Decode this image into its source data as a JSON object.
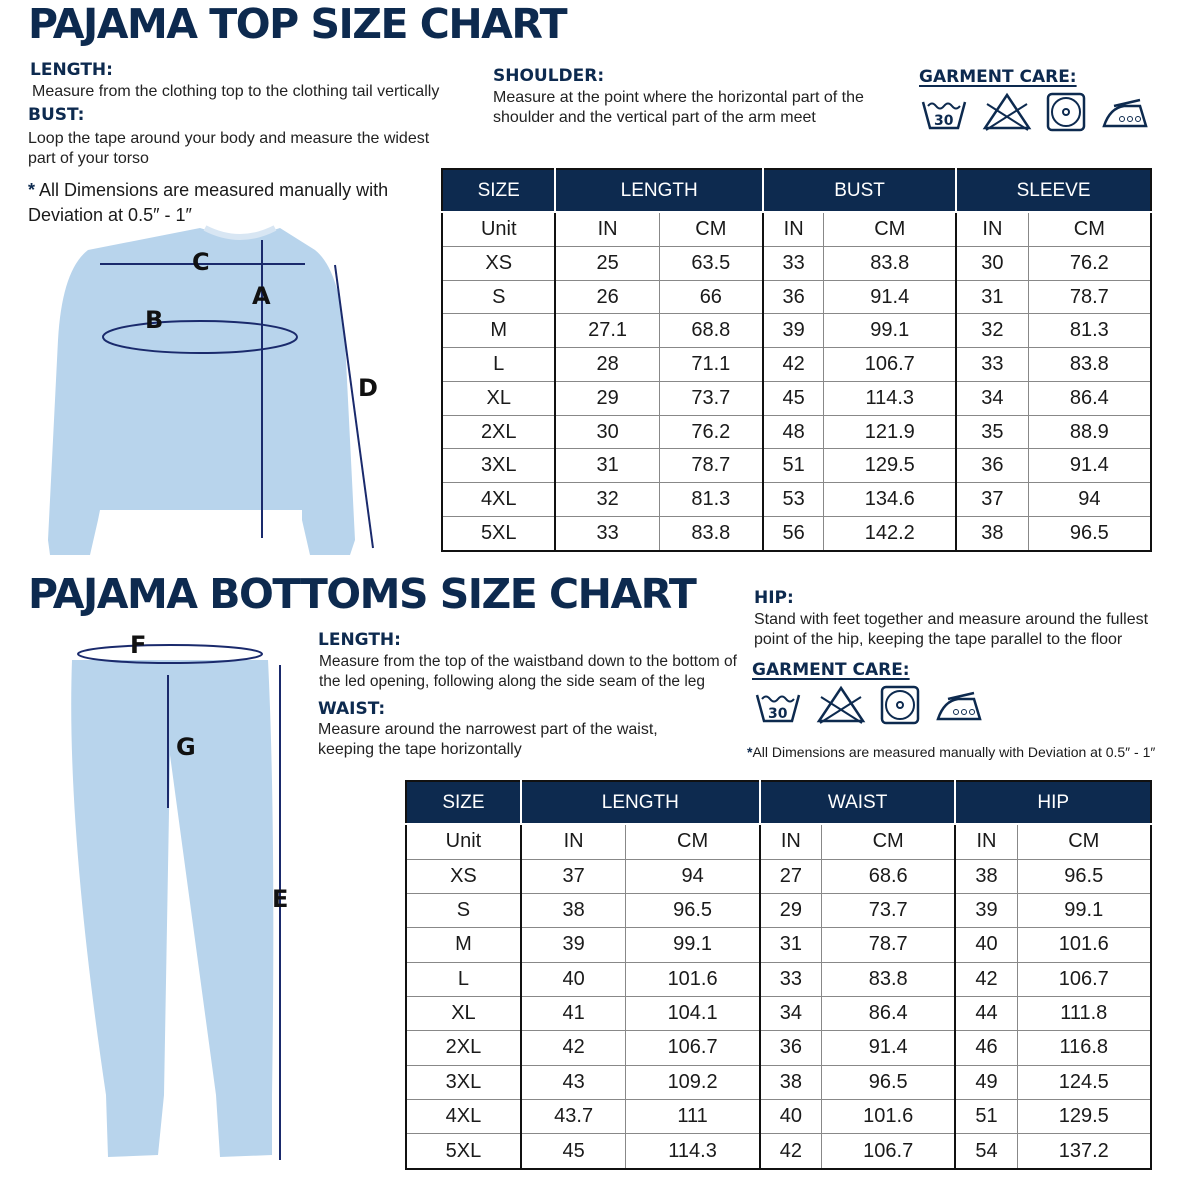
{
  "top": {
    "title": "PAJAMA TOP SIZE CHART",
    "length": {
      "heading": "LENGTH:",
      "text": "Measure from the clothing top to the clothing tail vertically"
    },
    "bust": {
      "heading": "BUST:",
      "text": "Loop the tape around your body and measure the widest part of your torso"
    },
    "shoulder": {
      "heading": "SHOULDER:",
      "text": "Measure at the point where the horizontal part of the shoulder and the vertical part of the arm meet"
    },
    "care_heading": "GARMENT CARE:",
    "note_star": "*",
    "note": "All Dimensions are measured manually with Deviation at 0.5″ - 1″",
    "diagram_labels": [
      "C",
      "A",
      "B",
      "D"
    ],
    "table": {
      "headers": [
        "SIZE",
        "LENGTH",
        "BUST",
        "SLEEVE"
      ],
      "unit_row": [
        "Unit",
        "IN",
        "CM",
        "IN",
        "CM",
        "IN",
        "CM"
      ],
      "rows": [
        [
          "XS",
          "25",
          "63.5",
          "33",
          "83.8",
          "30",
          "76.2"
        ],
        [
          "S",
          "26",
          "66",
          "36",
          "91.4",
          "31",
          "78.7"
        ],
        [
          "M",
          "27.1",
          "68.8",
          "39",
          "99.1",
          "32",
          "81.3"
        ],
        [
          "L",
          "28",
          "71.1",
          "42",
          "106.7",
          "33",
          "83.8"
        ],
        [
          "XL",
          "29",
          "73.7",
          "45",
          "114.3",
          "34",
          "86.4"
        ],
        [
          "2XL",
          "30",
          "76.2",
          "48",
          "121.9",
          "35",
          "88.9"
        ],
        [
          "3XL",
          "31",
          "78.7",
          "51",
          "129.5",
          "36",
          "91.4"
        ],
        [
          "4XL",
          "32",
          "81.3",
          "53",
          "134.6",
          "37",
          "94"
        ],
        [
          "5XL",
          "33",
          "83.8",
          "56",
          "142.2",
          "38",
          "96.5"
        ]
      ]
    }
  },
  "bottom": {
    "title": "PAJAMA BOTTOMS SIZE CHART",
    "length": {
      "heading": "LENGTH:",
      "text": "Measure from the top of the waistband down to the bottom of the led opening, following along the side seam of the leg"
    },
    "waist": {
      "heading": "WAIST:",
      "text": "Measure around the narrowest part of the waist, keeping the tape horizontally"
    },
    "hip": {
      "heading": "HIP:",
      "text": "Stand with feet together and measure around the fullest point of the hip, keeping the tape parallel to the floor"
    },
    "care_heading": "GARMENT CARE:",
    "note_star": "*",
    "note": "All Dimensions are measured manually with Deviation at 0.5″ - 1″",
    "diagram_labels": [
      "F",
      "G",
      "E"
    ],
    "table": {
      "headers": [
        "SIZE",
        "LENGTH",
        "WAIST",
        "HIP"
      ],
      "unit_row": [
        "Unit",
        "IN",
        "CM",
        "IN",
        "CM",
        "IN",
        "CM"
      ],
      "rows": [
        [
          "XS",
          "37",
          "94",
          "27",
          "68.6",
          "38",
          "96.5"
        ],
        [
          "S",
          "38",
          "96.5",
          "29",
          "73.7",
          "39",
          "99.1"
        ],
        [
          "M",
          "39",
          "99.1",
          "31",
          "78.7",
          "40",
          "101.6"
        ],
        [
          "L",
          "40",
          "101.6",
          "33",
          "83.8",
          "42",
          "106.7"
        ],
        [
          "XL",
          "41",
          "104.1",
          "34",
          "86.4",
          "44",
          "111.8"
        ],
        [
          "2XL",
          "42",
          "106.7",
          "36",
          "91.4",
          "46",
          "116.8"
        ],
        [
          "3XL",
          "43",
          "109.2",
          "38",
          "96.5",
          "49",
          "124.5"
        ],
        [
          "4XL",
          "43.7",
          "111",
          "40",
          "101.6",
          "51",
          "129.5"
        ],
        [
          "5XL",
          "45",
          "114.3",
          "42",
          "106.7",
          "54",
          "137.2"
        ]
      ]
    }
  },
  "care_icons": {
    "wash_temp": "30",
    "icons": [
      "wash-30-icon",
      "no-bleach-icon",
      "tumble-dry-icon",
      "iron-high-icon"
    ]
  },
  "colors": {
    "navy": "#0d2a4f",
    "garment": "#b8d4ec"
  }
}
